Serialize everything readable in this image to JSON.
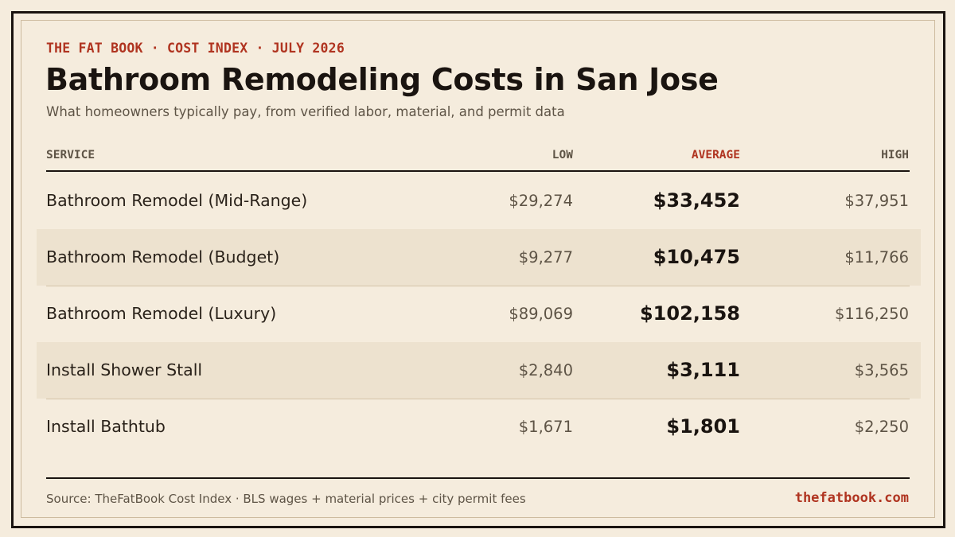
{
  "header": {
    "kicker": "THE FAT BOOK · COST INDEX · JULY 2026",
    "title": "Bathroom Remodeling Costs in San Jose",
    "subtitle": "What homeowners typically pay, from verified labor, material, and permit data"
  },
  "colors": {
    "background": "#f5ecdd",
    "accent": "#b03420",
    "ink": "#1a1410",
    "muted": "#5e5446",
    "shaded_row": "#ede2cf"
  },
  "chart_data": {
    "type": "table",
    "columns": {
      "service": "SERVICE",
      "low": "LOW",
      "average": "AVERAGE",
      "high": "HIGH"
    },
    "rows": [
      {
        "service": "Bathroom Remodel (Mid-Range)",
        "low": "$29,274",
        "average": "$33,452",
        "high": "$37,951"
      },
      {
        "service": "Bathroom Remodel (Budget)",
        "low": "$9,277",
        "average": "$10,475",
        "high": "$11,766"
      },
      {
        "service": "Bathroom Remodel (Luxury)",
        "low": "$89,069",
        "average": "$102,158",
        "high": "$116,250"
      },
      {
        "service": "Install Shower Stall",
        "low": "$2,840",
        "average": "$3,111",
        "high": "$3,565"
      },
      {
        "service": "Install Bathtub",
        "low": "$1,671",
        "average": "$1,801",
        "high": "$2,250"
      }
    ]
  },
  "footer": {
    "source": "Source: TheFatBook Cost Index · BLS wages + material prices + city permit fees",
    "brand": "thefatbook.com"
  }
}
